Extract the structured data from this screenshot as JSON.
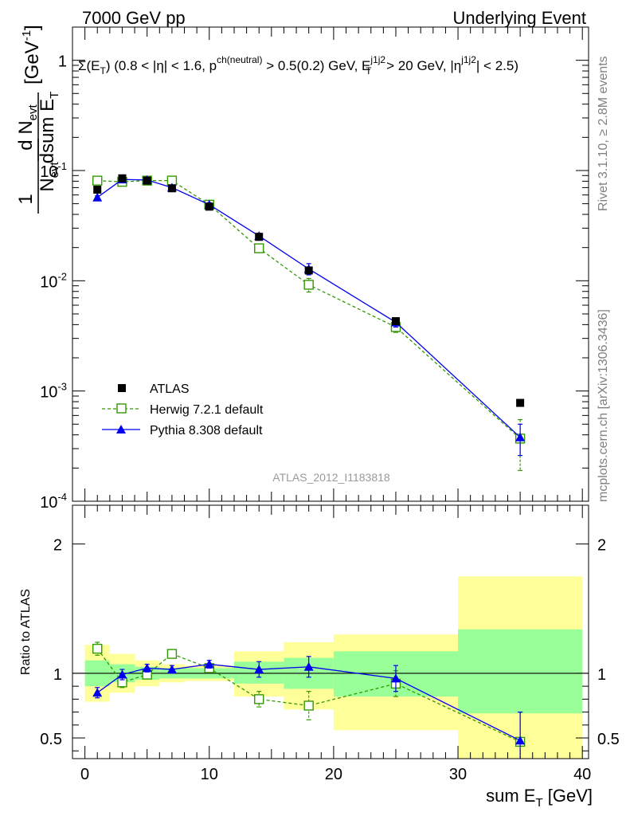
{
  "header": {
    "left": "7000 GeV pp",
    "right": "Underlying Event"
  },
  "side_labels": {
    "top": "Rivet 3.1.10, ≥ 2.8M events",
    "bottom": "mcplots.cern.ch [arXiv:1306.3436]"
  },
  "watermark": "ATLAS_2012_I1183818",
  "chart_data": [
    {
      "type": "scatter",
      "panel": "main",
      "title": "Σ(E_T) (0.8 < |η| < 1.6, p^ch(neutral) > 0.5(0.2) GeV, E_T^j1j2 > 20 GeV, |η^j1j2| < 2.5)",
      "ylabel": "1/N_evt dN_evt/dsum E_T [GeV^-1]",
      "xlabel": "sum E_T [GeV]",
      "xlim": [
        -1,
        40.5
      ],
      "ylim": [
        0.0001,
        2
      ],
      "yscale": "log",
      "y_tick_labels": [
        "10^-4",
        "10^-3",
        "10^-2",
        "10^-1",
        "1"
      ],
      "x_tick_labels": [
        "0",
        "10",
        "20",
        "30",
        "40"
      ],
      "legend_position": "lower-left",
      "series": [
        {
          "name": "ATLAS",
          "color": "#000000",
          "marker": "filled-square",
          "points": [
            {
              "x": 1,
              "y": 0.067
            },
            {
              "x": 3,
              "y": 0.085
            },
            {
              "x": 5,
              "y": 0.081
            },
            {
              "x": 7,
              "y": 0.069
            },
            {
              "x": 10,
              "y": 0.047
            },
            {
              "x": 14,
              "y": 0.025
            },
            {
              "x": 18,
              "y": 0.0124
            },
            {
              "x": 25,
              "y": 0.0043
            },
            {
              "x": 35,
              "y": 0.00078
            }
          ]
        },
        {
          "name": "Herwig 7.2.1 default",
          "color": "#339900",
          "marker": "open-square",
          "line": "dashed",
          "points": [
            {
              "x": 1,
              "y": 0.081,
              "err": 0.003
            },
            {
              "x": 3,
              "y": 0.079,
              "err": 0.003
            },
            {
              "x": 5,
              "y": 0.081,
              "err": 0.003
            },
            {
              "x": 7,
              "y": 0.081,
              "err": 0.003
            },
            {
              "x": 10,
              "y": 0.049,
              "err": 0.002
            },
            {
              "x": 14,
              "y": 0.0197,
              "err": 0.0015
            },
            {
              "x": 18,
              "y": 0.0092,
              "err": 0.0013
            },
            {
              "x": 25,
              "y": 0.0038,
              "err": 0.0004
            },
            {
              "x": 35,
              "y": 0.00037,
              "err": 0.00018
            }
          ]
        },
        {
          "name": "Pythia 8.308 default",
          "color": "#0000ee",
          "marker": "filled-triangle",
          "line": "solid",
          "points": [
            {
              "x": 1,
              "y": 0.057,
              "err": 0.002
            },
            {
              "x": 3,
              "y": 0.083,
              "err": 0.003
            },
            {
              "x": 5,
              "y": 0.082,
              "err": 0.003
            },
            {
              "x": 7,
              "y": 0.07,
              "err": 0.003
            },
            {
              "x": 10,
              "y": 0.049,
              "err": 0.002
            },
            {
              "x": 14,
              "y": 0.0255,
              "err": 0.0015
            },
            {
              "x": 18,
              "y": 0.0128,
              "err": 0.0015
            },
            {
              "x": 25,
              "y": 0.0042,
              "err": 0.0004
            },
            {
              "x": 35,
              "y": 0.00038,
              "err": 0.00012
            }
          ]
        }
      ]
    },
    {
      "type": "scatter",
      "panel": "ratio",
      "ylabel": "Ratio to ATLAS",
      "xlabel": "sum E_T [GeV]",
      "xlim": [
        -1,
        40.5
      ],
      "ylim": [
        0.34,
        2.3
      ],
      "y_tick_labels": [
        "0.5",
        "1",
        "2"
      ],
      "reference_line": 1,
      "bands": [
        {
          "x0": 0,
          "x1": 2,
          "inner": [
            0.9,
            1.1
          ],
          "outer": [
            0.78,
            1.22
          ]
        },
        {
          "x0": 2,
          "x1": 4,
          "inner": [
            0.93,
            1.07
          ],
          "outer": [
            0.85,
            1.15
          ]
        },
        {
          "x0": 4,
          "x1": 6,
          "inner": [
            0.95,
            1.05
          ],
          "outer": [
            0.9,
            1.1
          ]
        },
        {
          "x0": 6,
          "x1": 8,
          "inner": [
            0.96,
            1.04
          ],
          "outer": [
            0.93,
            1.07
          ]
        },
        {
          "x0": 8,
          "x1": 12,
          "inner": [
            0.96,
            1.04
          ],
          "outer": [
            0.94,
            1.06
          ]
        },
        {
          "x0": 12,
          "x1": 16,
          "inner": [
            0.92,
            1.09
          ],
          "outer": [
            0.82,
            1.17
          ]
        },
        {
          "x0": 16,
          "x1": 20,
          "inner": [
            0.88,
            1.12
          ],
          "outer": [
            0.72,
            1.24
          ]
        },
        {
          "x0": 20,
          "x1": 30,
          "inner": [
            0.82,
            1.17
          ],
          "outer": [
            0.56,
            1.3
          ]
        },
        {
          "x0": 30,
          "x1": 40,
          "inner": [
            0.69,
            1.34
          ],
          "outer": [
            0.34,
            1.75
          ]
        }
      ],
      "series": [
        {
          "name": "Herwig 7.2.1 default",
          "color": "#339900",
          "marker": "open-square",
          "line": "dashed",
          "points": [
            {
              "x": 1,
              "y": 1.19,
              "err": 0.05
            },
            {
              "x": 3,
              "y": 0.93,
              "err": 0.04
            },
            {
              "x": 5,
              "y": 0.99,
              "err": 0.03
            },
            {
              "x": 7,
              "y": 1.15,
              "err": 0.03
            },
            {
              "x": 10,
              "y": 1.04,
              "err": 0.03
            },
            {
              "x": 14,
              "y": 0.8,
              "err": 0.06
            },
            {
              "x": 18,
              "y": 0.75,
              "err": 0.11
            },
            {
              "x": 25,
              "y": 0.92,
              "err": 0.1
            },
            {
              "x": 35,
              "y": 0.47,
              "err": 0.23
            }
          ]
        },
        {
          "name": "Pythia 8.308 default",
          "color": "#0000ee",
          "marker": "filled-triangle",
          "line": "solid",
          "points": [
            {
              "x": 1,
              "y": 0.85,
              "err": 0.04
            },
            {
              "x": 3,
              "y": 0.99,
              "err": 0.04
            },
            {
              "x": 5,
              "y": 1.04,
              "err": 0.03
            },
            {
              "x": 7,
              "y": 1.03,
              "err": 0.03
            },
            {
              "x": 10,
              "y": 1.07,
              "err": 0.03
            },
            {
              "x": 14,
              "y": 1.03,
              "err": 0.06
            },
            {
              "x": 18,
              "y": 1.05,
              "err": 0.08
            },
            {
              "x": 25,
              "y": 0.96,
              "err": 0.1
            },
            {
              "x": 35,
              "y": 0.48,
              "err": 0.22
            }
          ]
        }
      ]
    }
  ]
}
